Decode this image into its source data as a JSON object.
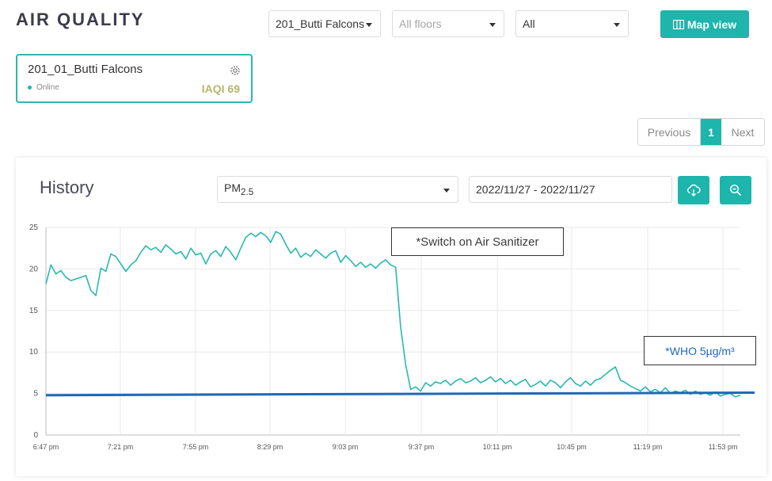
{
  "header": {
    "title": "AIR QUALITY",
    "site_select": "201_Butti Falcons",
    "floor_select": "All floors",
    "type_select": "All",
    "map_view_label": "Map view"
  },
  "device": {
    "name": "201_01_Butti Falcons",
    "status": "Online",
    "iaqi": "IAQI 69"
  },
  "pagination": {
    "previous": "Previous",
    "current": "1",
    "next": "Next"
  },
  "history": {
    "title": "History",
    "metric_main": "PM",
    "metric_sub": "2.5",
    "date_range": "2022/11/27 - 2022/11/27"
  },
  "annotations": {
    "sanitizer": "*Switch on Air Sanitizer",
    "who": "*WHO 5µg/m³"
  },
  "colors": {
    "accent": "#1db5ac",
    "series_line": "#2ab7b2",
    "who_line": "#1e68b8",
    "iaqi_text": "#b5b56a"
  },
  "chart_data": {
    "type": "line",
    "x_ticks": [
      "6:47 pm",
      "7:21 pm",
      "7:55 pm",
      "8:29 pm",
      "9:03 pm",
      "9:37 pm",
      "10:11 pm",
      "10:45 pm",
      "11:19 pm",
      "11:53 pm"
    ],
    "y_ticks": [
      0,
      5,
      10,
      15,
      20,
      25
    ],
    "ylim": [
      0,
      25
    ],
    "grid": true,
    "series": [
      {
        "values": [
          18.2,
          20.5,
          19.4,
          19.8,
          19.0,
          18.6,
          18.8,
          19.0,
          19.2,
          17.4,
          16.8,
          20.1,
          19.7,
          21.8,
          21.5,
          20.6,
          19.7,
          20.5,
          21.0,
          22.0,
          22.8,
          22.3,
          22.6,
          22.0,
          22.9,
          22.4,
          21.8,
          22.1,
          21.2,
          22.5,
          21.7,
          21.9,
          20.6,
          21.8,
          22.2,
          21.5,
          22.7,
          22.0,
          21.1,
          22.5,
          23.8,
          24.3,
          23.9,
          24.4,
          24.0,
          23.2,
          24.5,
          24.2,
          23.0,
          21.9,
          22.5,
          21.4,
          21.9,
          21.5,
          22.3,
          21.8,
          21.3,
          21.9,
          22.2,
          20.8,
          21.6,
          21.0,
          20.3,
          20.8,
          20.2,
          20.6,
          20.1,
          20.7,
          21.1,
          20.5,
          20.2,
          13.0,
          8.5,
          5.5,
          5.8,
          5.3,
          6.3,
          5.9,
          6.4,
          6.2,
          6.6,
          6.0,
          6.5,
          6.8,
          6.3,
          6.5,
          6.9,
          6.3,
          6.6,
          7.0,
          6.4,
          6.8,
          6.2,
          6.6,
          6.0,
          6.4,
          6.7,
          5.8,
          6.1,
          6.5,
          5.9,
          6.6,
          6.3,
          5.7,
          6.4,
          6.9,
          6.2,
          5.9,
          6.5,
          6.0,
          6.6,
          6.8,
          7.3,
          7.8,
          8.2,
          6.6,
          6.3,
          5.9,
          5.6,
          5.3,
          5.8,
          5.2,
          5.5,
          5.1,
          5.7,
          5.0,
          5.3,
          5.1,
          5.4,
          4.9,
          5.3,
          4.9,
          5.1,
          4.8,
          5.2,
          4.7,
          4.9,
          5.0,
          4.6,
          4.8
        ],
        "x_range": [
          "6:47 pm",
          "11:59 pm"
        ]
      },
      {
        "values": [
          4.8,
          5.1
        ],
        "x_range": [
          "6:47 pm",
          "11:59 pm"
        ]
      }
    ]
  }
}
